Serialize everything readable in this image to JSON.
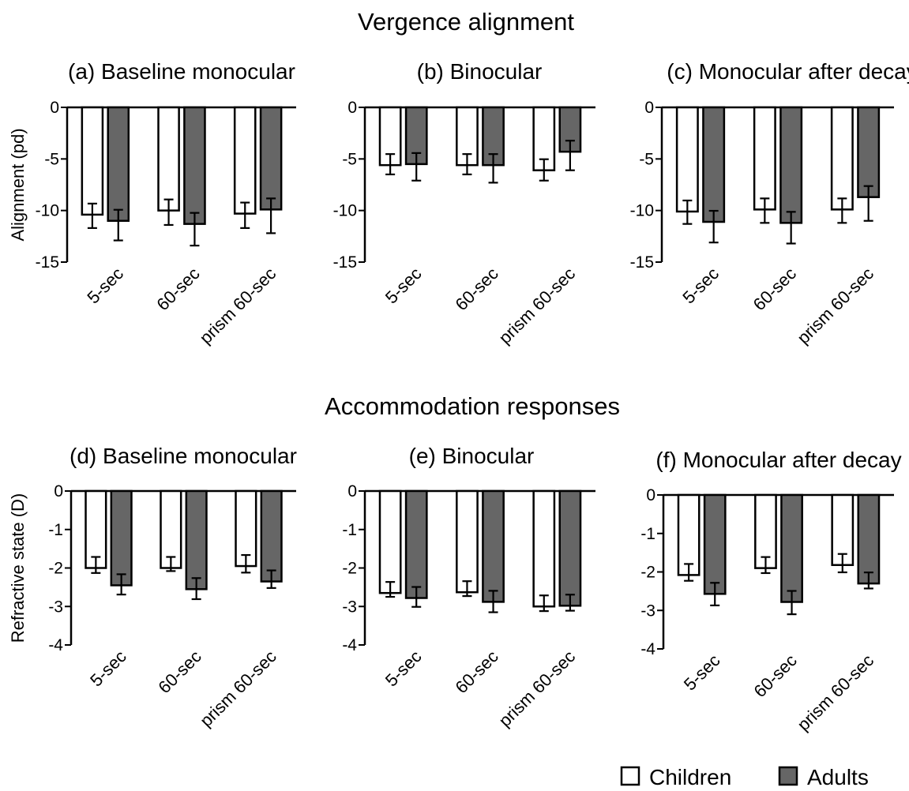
{
  "section_titles": [
    "Vergence alignment",
    "Accommodation responses"
  ],
  "colors": {
    "children": "#ffffff",
    "adults": "#666666",
    "stroke": "#000000"
  },
  "legend": [
    {
      "label": "Children",
      "color": "#ffffff"
    },
    {
      "label": "Adults",
      "color": "#666666"
    }
  ],
  "chart_data": [
    {
      "type": "bar",
      "title": "(a) Baseline monocular",
      "ylabel": "Alignment (pd)",
      "ylim": [
        -15,
        0
      ],
      "yticks": [
        0,
        -5,
        -10,
        -15
      ],
      "ytick_labels": [
        "0",
        "-5",
        "-10",
        "-15"
      ],
      "categories": [
        "5-sec",
        "60-sec",
        "prism 60-sec"
      ],
      "series": [
        {
          "name": "Children",
          "values": [
            -10.4,
            -10.0,
            -10.3
          ],
          "errors": [
            1.3,
            1.4,
            1.4
          ]
        },
        {
          "name": "Adults",
          "values": [
            -11.0,
            -11.3,
            -9.9
          ],
          "errors": [
            1.9,
            2.1,
            2.3
          ]
        }
      ]
    },
    {
      "type": "bar",
      "title": "(b) Binocular",
      "ylabel": "",
      "ylim": [
        -15,
        0
      ],
      "yticks": [
        0,
        -5,
        -10,
        -15
      ],
      "ytick_labels": [
        "0",
        "-5",
        "-10",
        "-15"
      ],
      "categories": [
        "5-sec",
        "60-sec",
        "prism 60-sec"
      ],
      "series": [
        {
          "name": "Children",
          "values": [
            -5.6,
            -5.6,
            -6.1
          ],
          "errors": [
            0.9,
            0.9,
            1.0
          ]
        },
        {
          "name": "Adults",
          "values": [
            -5.5,
            -5.6,
            -4.3
          ],
          "errors": [
            1.6,
            1.7,
            1.8
          ]
        }
      ]
    },
    {
      "type": "bar",
      "title": "(c) Monocular after decay",
      "ylabel": "",
      "ylim": [
        -15,
        0
      ],
      "yticks": [
        0,
        -5,
        -10,
        -15
      ],
      "ytick_labels": [
        "0",
        "-5",
        "-10",
        "-15"
      ],
      "categories": [
        "5-sec",
        "60-sec",
        "prism 60-sec"
      ],
      "series": [
        {
          "name": "Children",
          "values": [
            -10.1,
            -9.9,
            -9.9
          ],
          "errors": [
            1.2,
            1.3,
            1.3
          ]
        },
        {
          "name": "Adults",
          "values": [
            -11.1,
            -11.2,
            -8.7
          ],
          "errors": [
            2.0,
            2.0,
            2.3
          ]
        }
      ]
    },
    {
      "type": "bar",
      "title": "(d) Baseline monocular",
      "ylabel": "Refractive state (D)",
      "ylim": [
        -4,
        0
      ],
      "yticks": [
        0,
        -1,
        -2,
        -3,
        -4
      ],
      "ytick_labels": [
        "0",
        "-1",
        "-2",
        "-3",
        "-4"
      ],
      "categories": [
        "5-sec",
        "60-sec",
        "prism 60-sec"
      ],
      "series": [
        {
          "name": "Children",
          "values": [
            -2.0,
            -2.0,
            -1.95
          ],
          "errors": [
            0.13,
            0.08,
            0.17
          ]
        },
        {
          "name": "Adults",
          "values": [
            -2.45,
            -2.55,
            -2.35
          ],
          "errors": [
            0.24,
            0.26,
            0.17
          ]
        }
      ]
    },
    {
      "type": "bar",
      "title": "(e) Binocular",
      "ylabel": "",
      "ylim": [
        -4,
        0
      ],
      "yticks": [
        0,
        -1,
        -2,
        -3,
        -4
      ],
      "ytick_labels": [
        "0",
        "-1",
        "-2",
        "-3",
        "-4"
      ],
      "categories": [
        "5-sec",
        "60-sec",
        "prism 60-sec"
      ],
      "series": [
        {
          "name": "Children",
          "values": [
            -2.65,
            -2.63,
            -3.0
          ],
          "errors": [
            0.1,
            0.1,
            0.12
          ]
        },
        {
          "name": "Adults",
          "values": [
            -2.78,
            -2.88,
            -2.98
          ],
          "errors": [
            0.23,
            0.27,
            0.13
          ]
        }
      ]
    },
    {
      "type": "bar",
      "title": "(f) Monocular after decay",
      "ylabel": "",
      "ylim": [
        -4,
        0
      ],
      "yticks": [
        0,
        -1,
        -2,
        -3,
        -4
      ],
      "ytick_labels": [
        "0",
        "-1",
        "-2",
        "-3",
        "-4"
      ],
      "categories": [
        "5-sec",
        "60-sec",
        "prism 60-sec"
      ],
      "series": [
        {
          "name": "Children",
          "values": [
            -2.08,
            -1.9,
            -1.82
          ],
          "errors": [
            0.15,
            0.13,
            0.19
          ]
        },
        {
          "name": "Adults",
          "values": [
            -2.57,
            -2.78,
            -2.3
          ],
          "errors": [
            0.3,
            0.32,
            0.13
          ]
        }
      ]
    }
  ]
}
